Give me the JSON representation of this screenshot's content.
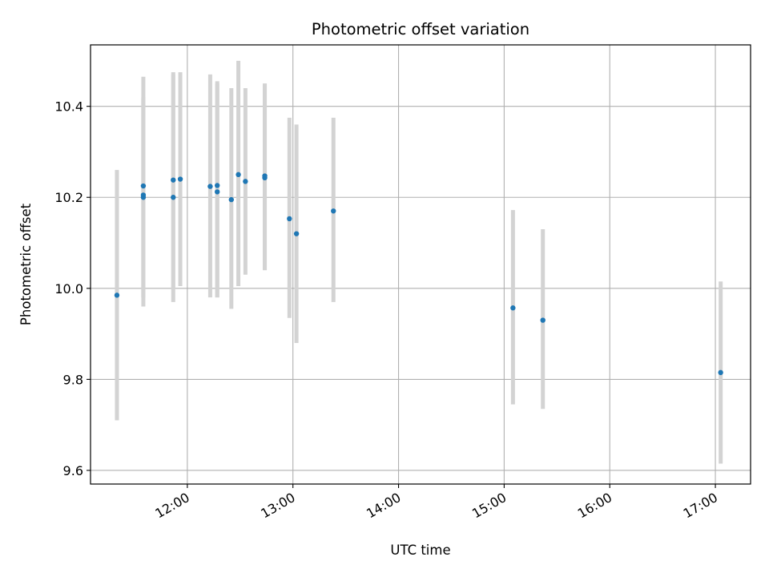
{
  "chart_data": {
    "type": "scatter",
    "title": "Photometric offset variation",
    "xlabel": "UTC time",
    "ylabel": "Photometric offset",
    "x_axis": "time",
    "xlim": [
      "11:05",
      "17:20"
    ],
    "ylim": [
      9.57,
      10.535
    ],
    "x_ticks": [
      "12:00",
      "13:00",
      "14:00",
      "15:00",
      "16:00",
      "17:00"
    ],
    "y_ticks": [
      9.6,
      9.8,
      10.0,
      10.2,
      10.4
    ],
    "grid": true,
    "colors": {
      "points": "#1f77b4",
      "errorbars": "#d3d3d3",
      "grid": "#b0b0b0"
    },
    "points": [
      {
        "t": "11:20",
        "y": 9.985,
        "lo": 9.71,
        "hi": 10.26
      },
      {
        "t": "11:35",
        "y": 10.225,
        "lo": 9.98,
        "hi": 10.415
      },
      {
        "t": "11:35",
        "y": 10.205,
        "lo": 9.96,
        "hi": 10.465
      },
      {
        "t": "11:35",
        "y": 10.2,
        "lo": 9.98,
        "hi": 10.42
      },
      {
        "t": "11:52",
        "y": 10.2,
        "lo": 9.97,
        "hi": 10.475
      },
      {
        "t": "11:52",
        "y": 10.238,
        "lo": 10.0,
        "hi": 10.47
      },
      {
        "t": "11:56",
        "y": 10.24,
        "lo": 10.005,
        "hi": 10.475
      },
      {
        "t": "12:13",
        "y": 10.224,
        "lo": 9.98,
        "hi": 10.47
      },
      {
        "t": "12:17",
        "y": 10.226,
        "lo": 9.98,
        "hi": 10.455
      },
      {
        "t": "12:17",
        "y": 10.212,
        "lo": 9.98,
        "hi": 10.45
      },
      {
        "t": "12:25",
        "y": 10.195,
        "lo": 9.955,
        "hi": 10.44
      },
      {
        "t": "12:29",
        "y": 10.25,
        "lo": 10.005,
        "hi": 10.5
      },
      {
        "t": "12:33",
        "y": 10.235,
        "lo": 10.03,
        "hi": 10.44
      },
      {
        "t": "12:44",
        "y": 10.247,
        "lo": 10.04,
        "hi": 10.45
      },
      {
        "t": "12:44",
        "y": 10.243,
        "lo": 10.04,
        "hi": 10.45
      },
      {
        "t": "12:58",
        "y": 10.153,
        "lo": 9.935,
        "hi": 10.375
      },
      {
        "t": "13:02",
        "y": 10.12,
        "lo": 9.88,
        "hi": 10.36
      },
      {
        "t": "13:23",
        "y": 10.17,
        "lo": 9.97,
        "hi": 10.375
      },
      {
        "t": "15:05",
        "y": 9.957,
        "lo": 9.745,
        "hi": 10.172
      },
      {
        "t": "15:22",
        "y": 9.93,
        "lo": 9.735,
        "hi": 10.13
      },
      {
        "t": "17:03",
        "y": 9.815,
        "lo": 9.615,
        "hi": 10.015
      }
    ]
  }
}
